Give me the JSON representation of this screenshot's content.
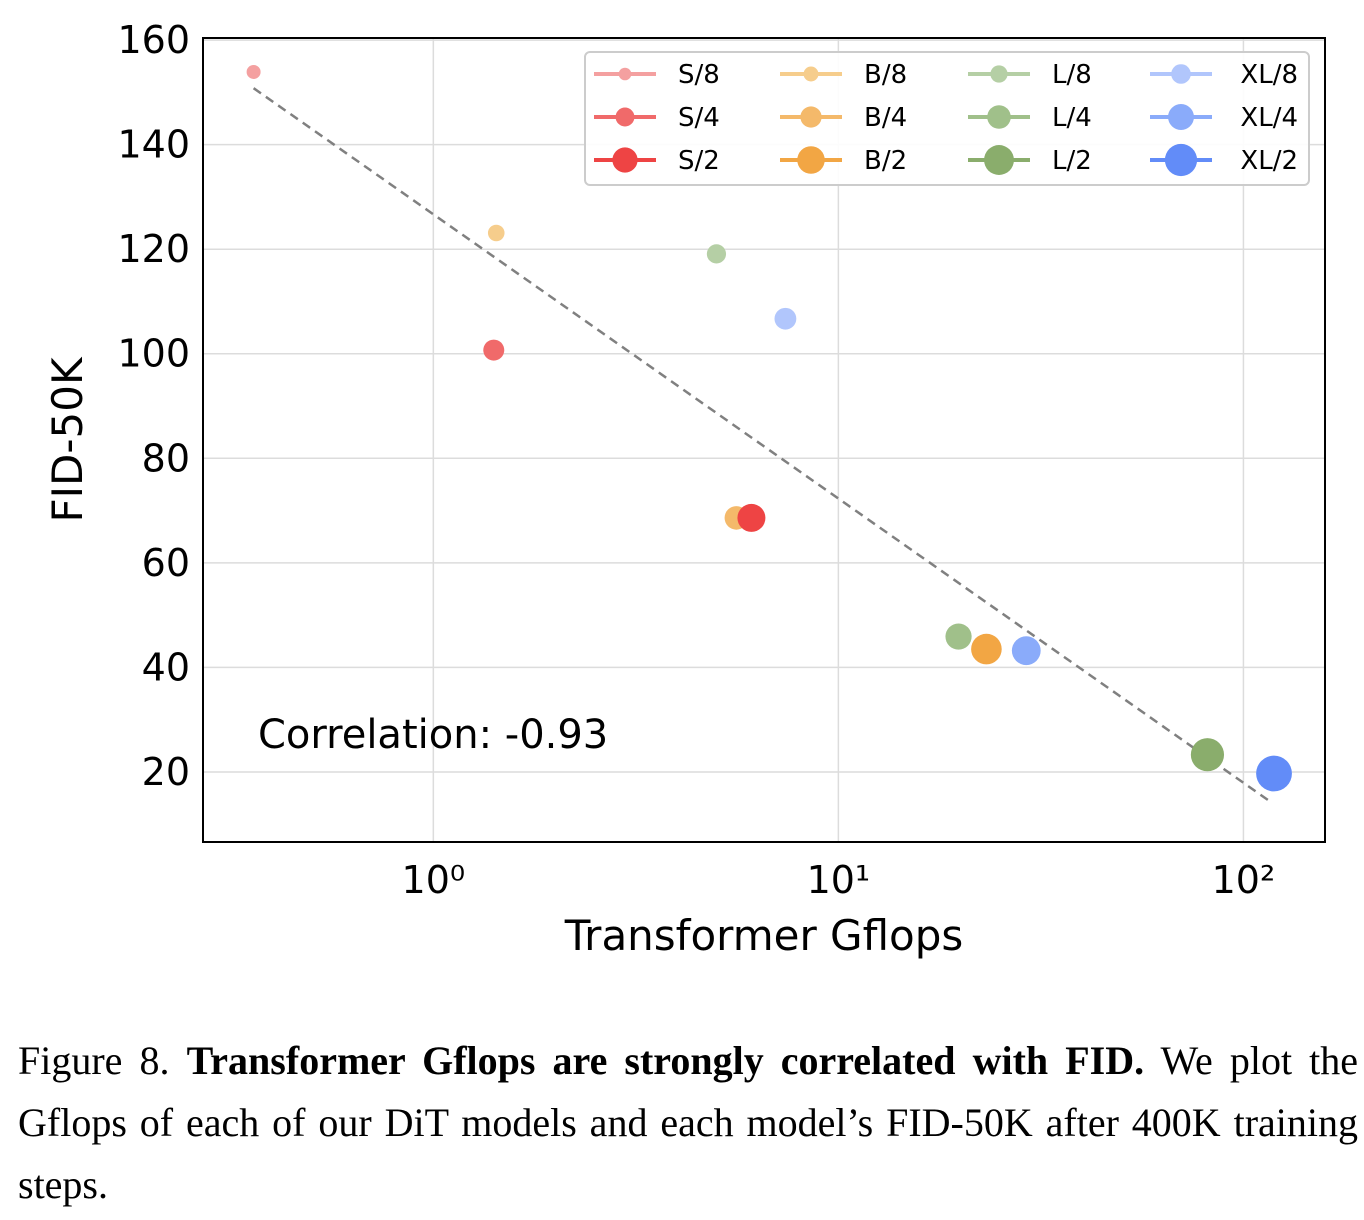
{
  "chart_data": {
    "type": "scatter",
    "xlabel": "Transformer Gflops",
    "ylabel": "FID-50K",
    "x_scale": "log",
    "xlim": [
      0.27,
      159
    ],
    "ylim": [
      6.6,
      160.4
    ],
    "x_ticks": [
      1,
      10,
      100
    ],
    "x_tick_labels": [
      "10⁰",
      "10¹",
      "10²"
    ],
    "y_ticks": [
      20,
      40,
      60,
      80,
      100,
      120,
      140,
      160
    ],
    "y_tick_labels": [
      "20",
      "40",
      "60",
      "80",
      "100",
      "120",
      "140",
      "160"
    ],
    "grid": true,
    "legend_placement": "top-right",
    "annotation": "Correlation: -0.93",
    "trend_line": {
      "style": "dashed",
      "color": "#808080",
      "points": [
        [
          0.36,
          150.8
        ],
        [
          116.6,
          14.3
        ]
      ]
    },
    "series": [
      {
        "name": "S/8",
        "color": "#f4a0a0",
        "points": [
          [
            0.36,
            153.9
          ]
        ]
      },
      {
        "name": "B/8",
        "color": "#f6cd8c",
        "points": [
          [
            1.43,
            123.1
          ]
        ]
      },
      {
        "name": "L/8",
        "color": "#b5cfa5",
        "points": [
          [
            5.0,
            119.1
          ]
        ]
      },
      {
        "name": "XL/8",
        "color": "#b1c6fc",
        "points": [
          [
            7.4,
            106.7
          ]
        ]
      },
      {
        "name": "S/4",
        "color": "#f06a6a",
        "points": [
          [
            1.41,
            100.7
          ]
        ]
      },
      {
        "name": "B/4",
        "color": "#f4b96a",
        "points": [
          [
            5.6,
            68.6
          ]
        ]
      },
      {
        "name": "L/4",
        "color": "#a0c08a",
        "points": [
          [
            19.8,
            45.9
          ]
        ]
      },
      {
        "name": "XL/4",
        "color": "#8aabfa",
        "points": [
          [
            29.1,
            43.2
          ]
        ]
      },
      {
        "name": "S/2",
        "color": "#ee4444",
        "points": [
          [
            6.1,
            68.6
          ]
        ]
      },
      {
        "name": "B/2",
        "color": "#f2a644",
        "points": [
          [
            23.2,
            43.5
          ]
        ]
      },
      {
        "name": "L/2",
        "color": "#8aad6c",
        "points": [
          [
            81.5,
            23.3
          ]
        ]
      },
      {
        "name": "XL/2",
        "color": "#628cf8",
        "points": [
          [
            119,
            19.7
          ]
        ]
      }
    ]
  },
  "caption": {
    "label": "Figure 8.",
    "title": "Transformer Gflops are strongly correlated with FID.",
    "text": "We plot the Gflops of each of our DiT models and each model’s FID-50K after 400K training steps."
  }
}
